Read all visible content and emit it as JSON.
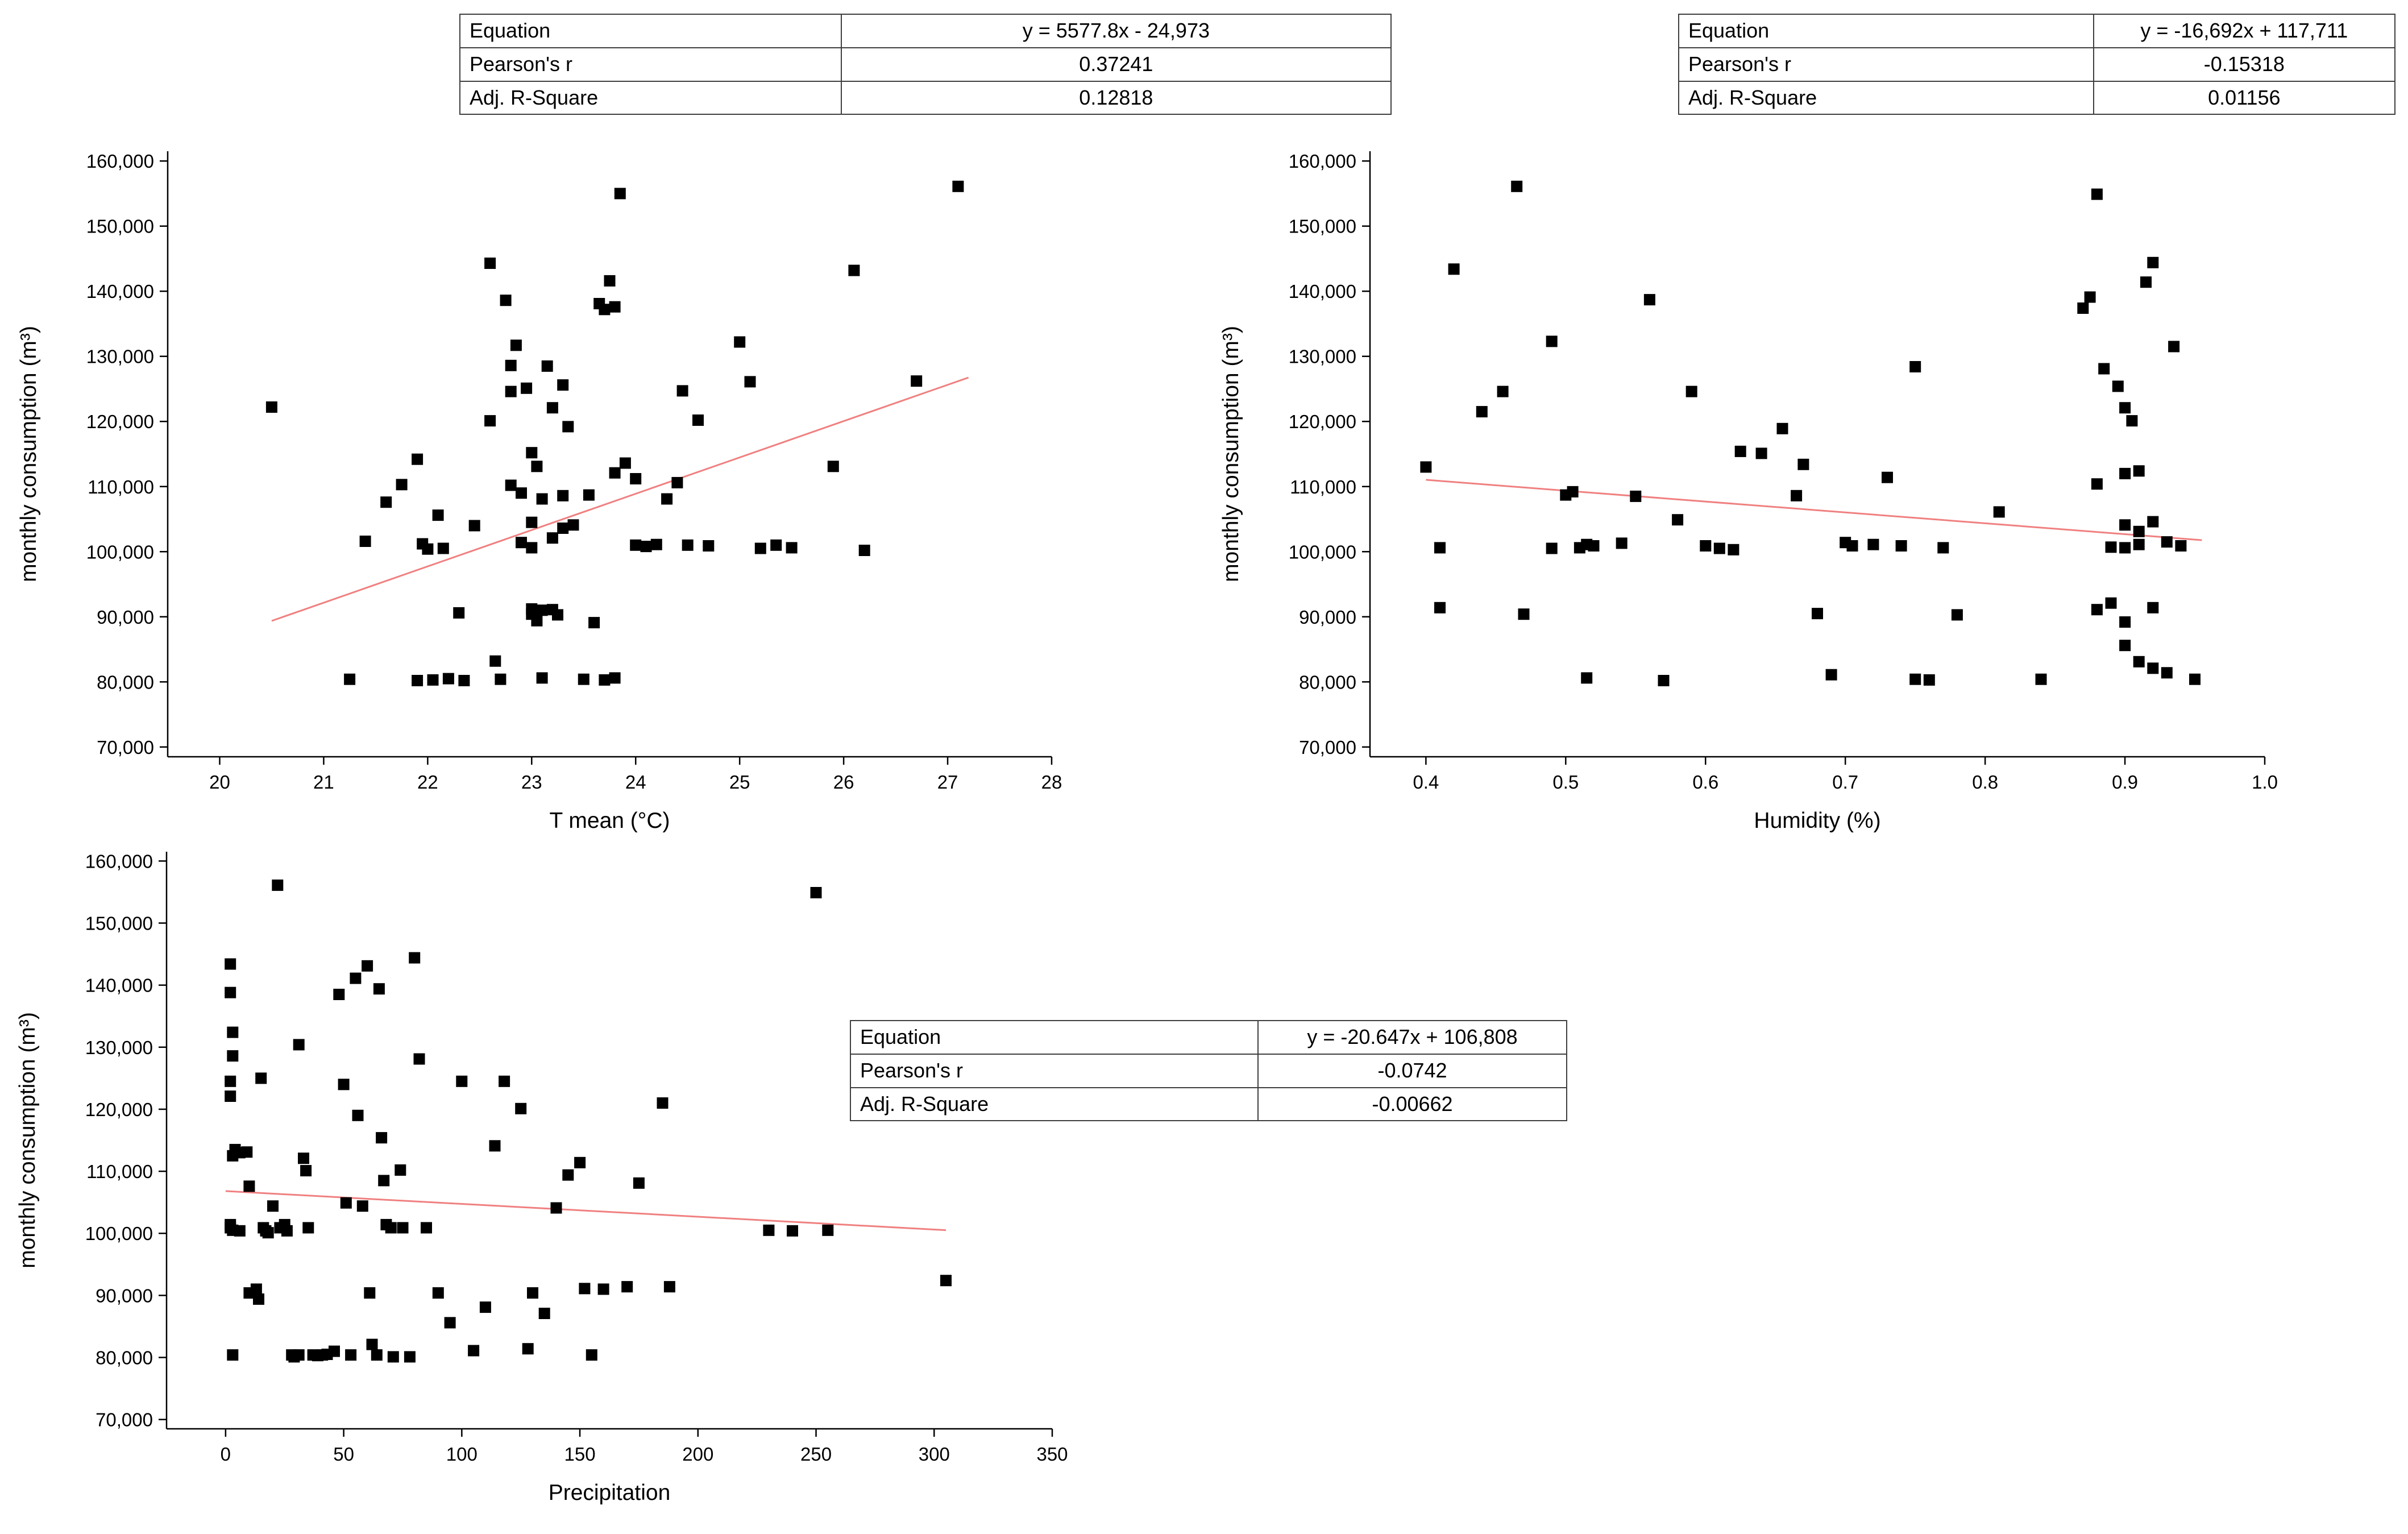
{
  "colors": {
    "marker": "#000000",
    "trend_line": "#f08080",
    "axis": "#000000",
    "table_border": "#3f3f3f",
    "background": "#ffffff"
  },
  "chart_data": [
    {
      "type": "scatter",
      "title": "",
      "xlabel": "T mean (°C)",
      "ylabel": "monthly consumption (m³)",
      "xlim": [
        19.5,
        28
      ],
      "ylim": [
        68500,
        161500
      ],
      "xticks": [
        20,
        21,
        22,
        23,
        24,
        25,
        26,
        27,
        28
      ],
      "xtick_labels": [
        "20",
        "21",
        "22",
        "23",
        "24",
        "25",
        "26",
        "27",
        "28"
      ],
      "yticks": [
        70000,
        80000,
        90000,
        100000,
        110000,
        120000,
        130000,
        140000,
        150000,
        160000
      ],
      "ytick_labels": [
        "70,000",
        "80,000",
        "90,000",
        "100,000",
        "110,000",
        "120,000",
        "130,000",
        "140,000",
        "150,000",
        "160,000"
      ],
      "grid": false,
      "legend": "none",
      "trend": {
        "slope": 5577.8,
        "intercept": -24973,
        "x_start": 20.5,
        "x_end": 27.2
      },
      "stats": [
        {
          "label": "Equation",
          "value": "y = 5577.8x - 24,973"
        },
        {
          "label": "Pearson's r",
          "value": "0.37241"
        },
        {
          "label": "Adj. R-Square",
          "value": "0.12818"
        }
      ],
      "points": [
        [
          20.5,
          122200
        ],
        [
          21.25,
          80400
        ],
        [
          21.4,
          101600
        ],
        [
          21.6,
          107600
        ],
        [
          21.75,
          110300
        ],
        [
          21.9,
          114200
        ],
        [
          21.9,
          80200
        ],
        [
          21.95,
          101200
        ],
        [
          22.0,
          100400
        ],
        [
          22.05,
          80300
        ],
        [
          22.1,
          105600
        ],
        [
          22.15,
          100500
        ],
        [
          22.2,
          80500
        ],
        [
          22.3,
          90600
        ],
        [
          22.35,
          80200
        ],
        [
          22.45,
          104000
        ],
        [
          22.6,
          144300
        ],
        [
          22.6,
          120100
        ],
        [
          22.65,
          83200
        ],
        [
          22.7,
          80400
        ],
        [
          22.75,
          138600
        ],
        [
          22.8,
          128600
        ],
        [
          22.8,
          124600
        ],
        [
          22.8,
          110200
        ],
        [
          22.85,
          131700
        ],
        [
          22.9,
          109000
        ],
        [
          22.9,
          101400
        ],
        [
          22.95,
          125100
        ],
        [
          23.0,
          115200
        ],
        [
          23.0,
          104500
        ],
        [
          23.0,
          100600
        ],
        [
          23.0,
          91200
        ],
        [
          23.0,
          90400
        ],
        [
          23.05,
          89400
        ],
        [
          23.05,
          113100
        ],
        [
          23.1,
          108100
        ],
        [
          23.1,
          91000
        ],
        [
          23.1,
          80600
        ],
        [
          23.15,
          128500
        ],
        [
          23.2,
          122100
        ],
        [
          23.2,
          102100
        ],
        [
          23.2,
          91100
        ],
        [
          23.25,
          90300
        ],
        [
          23.3,
          125600
        ],
        [
          23.3,
          108600
        ],
        [
          23.3,
          103600
        ],
        [
          23.35,
          119200
        ],
        [
          23.4,
          104100
        ],
        [
          23.5,
          80400
        ],
        [
          23.55,
          108700
        ],
        [
          23.6,
          89100
        ],
        [
          23.65,
          138100
        ],
        [
          23.7,
          137200
        ],
        [
          23.7,
          80300
        ],
        [
          23.75,
          141600
        ],
        [
          23.8,
          137600
        ],
        [
          23.8,
          112100
        ],
        [
          23.8,
          80600
        ],
        [
          23.85,
          155000
        ],
        [
          23.9,
          113600
        ],
        [
          24.0,
          111200
        ],
        [
          24.0,
          101000
        ],
        [
          24.1,
          100800
        ],
        [
          24.2,
          101100
        ],
        [
          24.3,
          108100
        ],
        [
          24.4,
          110600
        ],
        [
          24.45,
          124700
        ],
        [
          24.5,
          101000
        ],
        [
          24.6,
          120200
        ],
        [
          24.7,
          100900
        ],
        [
          25.0,
          132200
        ],
        [
          25.1,
          126100
        ],
        [
          25.2,
          100500
        ],
        [
          25.35,
          101000
        ],
        [
          25.5,
          100600
        ],
        [
          25.9,
          113100
        ],
        [
          26.1,
          143200
        ],
        [
          26.2,
          100200
        ],
        [
          26.7,
          126200
        ],
        [
          27.1,
          156100
        ]
      ]
    },
    {
      "type": "scatter",
      "title": "",
      "xlabel": "Humidity (%)",
      "ylabel": "monthly consumption (m³)",
      "xlim": [
        0.36,
        1.0
      ],
      "ylim": [
        68500,
        161500
      ],
      "xticks": [
        0.4,
        0.5,
        0.6,
        0.7,
        0.8,
        0.9,
        1.0
      ],
      "xtick_labels": [
        "0.4",
        "0.5",
        "0.6",
        "0.7",
        "0.8",
        "0.9",
        "1.0"
      ],
      "yticks": [
        70000,
        80000,
        90000,
        100000,
        110000,
        120000,
        130000,
        140000,
        150000,
        160000
      ],
      "ytick_labels": [
        "70,000",
        "80,000",
        "90,000",
        "100,000",
        "110,000",
        "120,000",
        "130,000",
        "140,000",
        "150,000",
        "160,000"
      ],
      "grid": false,
      "legend": "none",
      "trend": {
        "slope": -16692,
        "intercept": 117711,
        "x_start": 0.4,
        "x_end": 0.955
      },
      "stats": [
        {
          "label": "Equation",
          "value": "y = -16,692x + 117,711"
        },
        {
          "label": "Pearson's r",
          "value": "-0.15318"
        },
        {
          "label": "Adj. R-Square",
          "value": "0.01156"
        }
      ],
      "points": [
        [
          0.4,
          113000
        ],
        [
          0.41,
          100600
        ],
        [
          0.41,
          91400
        ],
        [
          0.42,
          143400
        ],
        [
          0.44,
          121500
        ],
        [
          0.455,
          124600
        ],
        [
          0.465,
          156100
        ],
        [
          0.47,
          90400
        ],
        [
          0.49,
          132300
        ],
        [
          0.49,
          100500
        ],
        [
          0.5,
          108700
        ],
        [
          0.505,
          109200
        ],
        [
          0.51,
          100600
        ],
        [
          0.515,
          101100
        ],
        [
          0.515,
          80600
        ],
        [
          0.52,
          100900
        ],
        [
          0.54,
          101300
        ],
        [
          0.55,
          108500
        ],
        [
          0.56,
          138700
        ],
        [
          0.57,
          80200
        ],
        [
          0.58,
          104900
        ],
        [
          0.59,
          124600
        ],
        [
          0.6,
          100900
        ],
        [
          0.61,
          100500
        ],
        [
          0.62,
          100300
        ],
        [
          0.625,
          115400
        ],
        [
          0.64,
          115100
        ],
        [
          0.655,
          118900
        ],
        [
          0.665,
          108600
        ],
        [
          0.67,
          113400
        ],
        [
          0.68,
          90500
        ],
        [
          0.69,
          81100
        ],
        [
          0.7,
          101400
        ],
        [
          0.705,
          100900
        ],
        [
          0.72,
          101100
        ],
        [
          0.73,
          111400
        ],
        [
          0.74,
          100900
        ],
        [
          0.75,
          128400
        ],
        [
          0.75,
          80400
        ],
        [
          0.76,
          80300
        ],
        [
          0.77,
          100600
        ],
        [
          0.78,
          90300
        ],
        [
          0.81,
          106100
        ],
        [
          0.84,
          80400
        ],
        [
          0.87,
          137400
        ],
        [
          0.875,
          139100
        ],
        [
          0.88,
          154900
        ],
        [
          0.88,
          110400
        ],
        [
          0.88,
          91100
        ],
        [
          0.885,
          128100
        ],
        [
          0.89,
          100700
        ],
        [
          0.89,
          92100
        ],
        [
          0.895,
          125400
        ],
        [
          0.9,
          122100
        ],
        [
          0.9,
          112000
        ],
        [
          0.9,
          104100
        ],
        [
          0.9,
          100600
        ],
        [
          0.9,
          89200
        ],
        [
          0.9,
          85600
        ],
        [
          0.905,
          120100
        ],
        [
          0.91,
          112400
        ],
        [
          0.91,
          103100
        ],
        [
          0.91,
          101100
        ],
        [
          0.91,
          83100
        ],
        [
          0.915,
          141400
        ],
        [
          0.92,
          144400
        ],
        [
          0.92,
          104600
        ],
        [
          0.92,
          91400
        ],
        [
          0.92,
          82100
        ],
        [
          0.93,
          101500
        ],
        [
          0.93,
          81400
        ],
        [
          0.935,
          131500
        ],
        [
          0.94,
          100900
        ],
        [
          0.95,
          80400
        ]
      ]
    },
    {
      "type": "scatter",
      "title": "",
      "xlabel": "Precipitation",
      "ylabel": "monthly consumption (m³)",
      "xlim": [
        -25,
        350
      ],
      "ylim": [
        68500,
        161500
      ],
      "xticks": [
        0,
        50,
        100,
        150,
        200,
        250,
        300,
        350
      ],
      "xtick_labels": [
        "0",
        "50",
        "100",
        "150",
        "200",
        "250",
        "300",
        "350"
      ],
      "yticks": [
        70000,
        80000,
        90000,
        100000,
        110000,
        120000,
        130000,
        140000,
        150000,
        160000
      ],
      "ytick_labels": [
        "70,000",
        "80,000",
        "90,000",
        "100,000",
        "110,000",
        "120,000",
        "130,000",
        "140,000",
        "150,000",
        "160,000"
      ],
      "grid": false,
      "legend": "none",
      "trend": {
        "slope": -20.647,
        "intercept": 106808,
        "x_start": 0,
        "x_end": 305
      },
      "stats": [
        {
          "label": "Equation",
          "value": "y = -20.647x + 106,808"
        },
        {
          "label": "Pearson's r",
          "value": "-0.0742"
        },
        {
          "label": "Adj. R-Square",
          "value": "-0.00662"
        }
      ],
      "points": [
        [
          2,
          143400
        ],
        [
          2,
          138800
        ],
        [
          3,
          132400
        ],
        [
          3,
          128600
        ],
        [
          2,
          124500
        ],
        [
          2,
          122100
        ],
        [
          4,
          113500
        ],
        [
          6,
          113000
        ],
        [
          3,
          112500
        ],
        [
          2,
          101400
        ],
        [
          2,
          100900
        ],
        [
          3,
          100500
        ],
        [
          6,
          100400
        ],
        [
          3,
          80400
        ],
        [
          9,
          113100
        ],
        [
          10,
          107600
        ],
        [
          10,
          90400
        ],
        [
          13,
          91000
        ],
        [
          14,
          89400
        ],
        [
          15,
          125000
        ],
        [
          16,
          100900
        ],
        [
          17,
          100400
        ],
        [
          18,
          100100
        ],
        [
          20,
          104400
        ],
        [
          22,
          156100
        ],
        [
          23,
          100900
        ],
        [
          25,
          101400
        ],
        [
          26,
          100400
        ],
        [
          28,
          80400
        ],
        [
          29,
          80100
        ],
        [
          31,
          80400
        ],
        [
          31,
          130400
        ],
        [
          33,
          112100
        ],
        [
          34,
          110100
        ],
        [
          35,
          100900
        ],
        [
          37,
          80400
        ],
        [
          39,
          80300
        ],
        [
          41,
          80400
        ],
        [
          43,
          80500
        ],
        [
          46,
          81000
        ],
        [
          48,
          138500
        ],
        [
          50,
          124000
        ],
        [
          51,
          104900
        ],
        [
          53,
          80400
        ],
        [
          55,
          141100
        ],
        [
          56,
          119000
        ],
        [
          58,
          104400
        ],
        [
          60,
          143100
        ],
        [
          61,
          90400
        ],
        [
          62,
          82100
        ],
        [
          64,
          80400
        ],
        [
          65,
          139400
        ],
        [
          66,
          115400
        ],
        [
          67,
          108500
        ],
        [
          68,
          101400
        ],
        [
          70,
          100900
        ],
        [
          71,
          80100
        ],
        [
          74,
          110200
        ],
        [
          75,
          100900
        ],
        [
          78,
          80100
        ],
        [
          80,
          144400
        ],
        [
          82,
          128100
        ],
        [
          85,
          100900
        ],
        [
          90,
          90400
        ],
        [
          95,
          85600
        ],
        [
          100,
          124500
        ],
        [
          105,
          81100
        ],
        [
          110,
          88100
        ],
        [
          114,
          114100
        ],
        [
          118,
          124500
        ],
        [
          125,
          120100
        ],
        [
          128,
          81400
        ],
        [
          130,
          90400
        ],
        [
          135,
          87100
        ],
        [
          140,
          104100
        ],
        [
          145,
          109400
        ],
        [
          150,
          111400
        ],
        [
          152,
          91100
        ],
        [
          155,
          80400
        ],
        [
          160,
          91000
        ],
        [
          170,
          91400
        ],
        [
          175,
          108100
        ],
        [
          185,
          121000
        ],
        [
          188,
          91400
        ],
        [
          230,
          100500
        ],
        [
          240,
          100400
        ],
        [
          250,
          154900
        ],
        [
          255,
          100500
        ],
        [
          305,
          92400
        ]
      ]
    }
  ]
}
